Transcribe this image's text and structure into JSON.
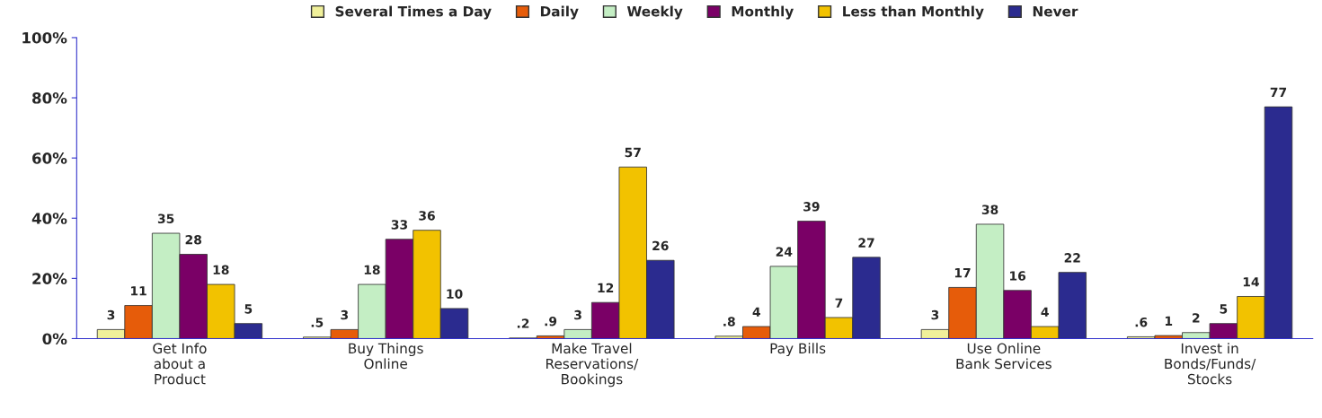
{
  "chart_data": {
    "type": "bar",
    "categories": [
      "Get Info\nabout a\nProduct",
      "Buy Things\nOnline",
      "Make Travel\nReservations/\nBookings",
      "Pay Bills",
      "Use Online\nBank Services",
      "Invest in\nBonds/Funds/\nStocks"
    ],
    "series": [
      {
        "name": "Several Times a Day",
        "color": "#f0f09a",
        "values": [
          3,
          0.5,
          0.2,
          0.8,
          3,
          0.6
        ],
        "value_labels": [
          "3",
          ".5",
          ".2",
          ".8",
          "3",
          ".6"
        ]
      },
      {
        "name": "Daily",
        "color": "#e65c0a",
        "values": [
          11,
          3,
          0.9,
          4,
          17,
          1
        ],
        "value_labels": [
          "11",
          "3",
          ".9",
          "4",
          "17",
          "1"
        ]
      },
      {
        "name": "Weekly",
        "color": "#c4eec4",
        "values": [
          35,
          18,
          3,
          24,
          38,
          2
        ],
        "value_labels": [
          "35",
          "18",
          "3",
          "24",
          "38",
          "2"
        ]
      },
      {
        "name": "Monthly",
        "color": "#7a0066",
        "values": [
          28,
          33,
          12,
          39,
          16,
          5
        ],
        "value_labels": [
          "28",
          "33",
          "12",
          "39",
          "16",
          "5"
        ]
      },
      {
        "name": "Less than Monthly",
        "color": "#f2c200",
        "values": [
          18,
          36,
          57,
          7,
          4,
          14
        ],
        "value_labels": [
          "18",
          "36",
          "57",
          "7",
          "4",
          "14"
        ]
      },
      {
        "name": "Never",
        "color": "#2b2b8f",
        "values": [
          5,
          10,
          26,
          27,
          22,
          77
        ],
        "value_labels": [
          "5",
          "10",
          "26",
          "27",
          "22",
          "77"
        ]
      }
    ],
    "ylim": [
      0,
      100
    ],
    "yticks": [
      {
        "value": 0,
        "label": "0%"
      },
      {
        "value": 20,
        "label": "20%"
      },
      {
        "value": 40,
        "label": "40%"
      },
      {
        "value": 60,
        "label": "60%"
      },
      {
        "value": 80,
        "label": "80%"
      },
      {
        "value": 100,
        "label": "100%"
      }
    ],
    "grid": false,
    "legend": "top"
  }
}
